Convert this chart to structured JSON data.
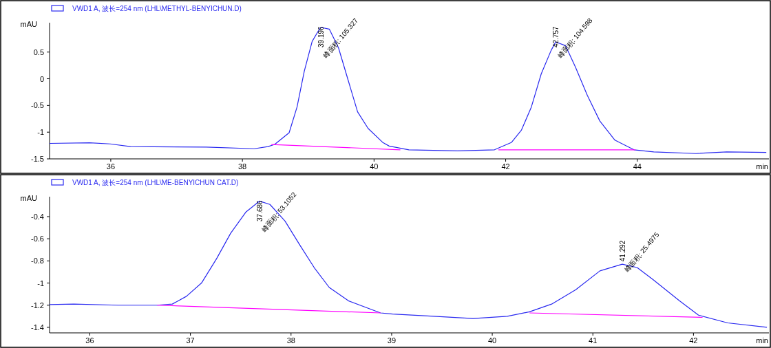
{
  "chart_data": [
    {
      "type": "line",
      "xlabel": "min",
      "ylabel": "mAU",
      "xlim": [
        35.07,
        46
      ],
      "ylim": [
        -1.5,
        1.05
      ],
      "xticks": [
        36,
        38,
        40,
        42,
        44
      ],
      "yticks": [
        0.5,
        0,
        -0.5,
        -1,
        -1.5
      ],
      "legend": "top left",
      "series": [
        {
          "name": "VWD1 A, 波长=254 nm (LHL\\METHYL-BENYICHUN.D)",
          "color": "#2828f0",
          "x": [
            35.07,
            35.68,
            35.99,
            36.3,
            37.45,
            38.18,
            38.39,
            38.49,
            38.71,
            38.83,
            38.94,
            39.06,
            39.18,
            39.2,
            39.32,
            39.46,
            39.6,
            39.75,
            39.91,
            40.13,
            40.23,
            40.53,
            41.27,
            41.83,
            42.09,
            42.24,
            42.39,
            42.54,
            42.69,
            42.76,
            42.91,
            43.06,
            43.24,
            43.43,
            43.66,
            43.95,
            44.25,
            44.89,
            45.36,
            45.96
          ],
          "values": [
            -1.21,
            -1.2,
            -1.22,
            -1.27,
            -1.28,
            -1.31,
            -1.27,
            -1.23,
            -1.01,
            -0.53,
            0.14,
            0.7,
            0.95,
            0.96,
            0.93,
            0.58,
            0,
            -0.62,
            -0.93,
            -1.19,
            -1.26,
            -1.33,
            -1.35,
            -1.33,
            -1.19,
            -0.96,
            -0.53,
            0.09,
            0.53,
            0.69,
            0.62,
            0.22,
            -0.31,
            -0.79,
            -1.15,
            -1.33,
            -1.37,
            -1.4,
            -1.37,
            -1.38
          ]
        },
        {
          "color": "#ff00ff",
          "x": [
            38.44,
            40.4
          ],
          "values": [
            -1.23,
            -1.33
          ]
        },
        {
          "color": "#ff00ff",
          "x": [
            41.89,
            43.97
          ],
          "values": [
            -1.33,
            -1.33
          ]
        }
      ],
      "annotations": [
        {
          "text": "39.196",
          "x": 39.196,
          "y": 0.96
        },
        {
          "text": "峰面积: 105.327",
          "x": 39.196,
          "y": 0.96
        },
        {
          "text": "42.757",
          "x": 42.757,
          "y": 0.69
        },
        {
          "text": "峰面积: 104.598",
          "x": 42.757,
          "y": 0.69
        }
      ]
    },
    {
      "type": "line",
      "xlabel": "min",
      "ylabel": "mAU",
      "xlim": [
        35.6,
        42.75
      ],
      "ylim": [
        -1.45,
        -0.22
      ],
      "xticks": [
        36,
        37,
        38,
        39,
        40,
        41,
        42
      ],
      "yticks": [
        -0.4,
        -0.6,
        -0.8,
        -1,
        -1.2,
        -1.4
      ],
      "legend": "top left",
      "series": [
        {
          "name": "VWD1 A, 波长=254 nm (LHL\\ME-BENYICHUN CAT.D)",
          "color": "#2828f0",
          "x": [
            35.6,
            35.84,
            36.28,
            36.67,
            36.82,
            36.96,
            37.11,
            37.26,
            37.4,
            37.55,
            37.686,
            37.79,
            37.94,
            38.09,
            38.23,
            38.38,
            38.57,
            38.89,
            39.01,
            39.42,
            39.81,
            40.15,
            40.37,
            40.59,
            40.83,
            41.07,
            41.292,
            41.44,
            41.6,
            41.86,
            42.05,
            42.34,
            42.73
          ],
          "values": [
            -1.195,
            -1.19,
            -1.2,
            -1.2,
            -1.19,
            -1.12,
            -1.0,
            -0.78,
            -0.55,
            -0.36,
            -0.26,
            -0.29,
            -0.44,
            -0.66,
            -0.86,
            -1.04,
            -1.16,
            -1.27,
            -1.28,
            -1.3,
            -1.32,
            -1.3,
            -1.26,
            -1.19,
            -1.06,
            -0.89,
            -0.83,
            -0.86,
            -0.97,
            -1.16,
            -1.29,
            -1.36,
            -1.4
          ]
        },
        {
          "color": "#ff00ff",
          "x": [
            36.67,
            38.89
          ],
          "values": [
            -1.2,
            -1.27
          ]
        },
        {
          "color": "#ff00ff",
          "x": [
            40.37,
            42.09
          ],
          "values": [
            -1.27,
            -1.31
          ]
        }
      ],
      "annotations": [
        {
          "text": "37.686",
          "x": 37.686,
          "y": -0.26
        },
        {
          "text": "峰面积: 53.1052",
          "x": 37.686,
          "y": -0.26
        },
        {
          "text": "41.292",
          "x": 41.292,
          "y": -0.83
        },
        {
          "text": "峰面积: 25.4975",
          "x": 41.292,
          "y": -0.83
        }
      ]
    }
  ]
}
